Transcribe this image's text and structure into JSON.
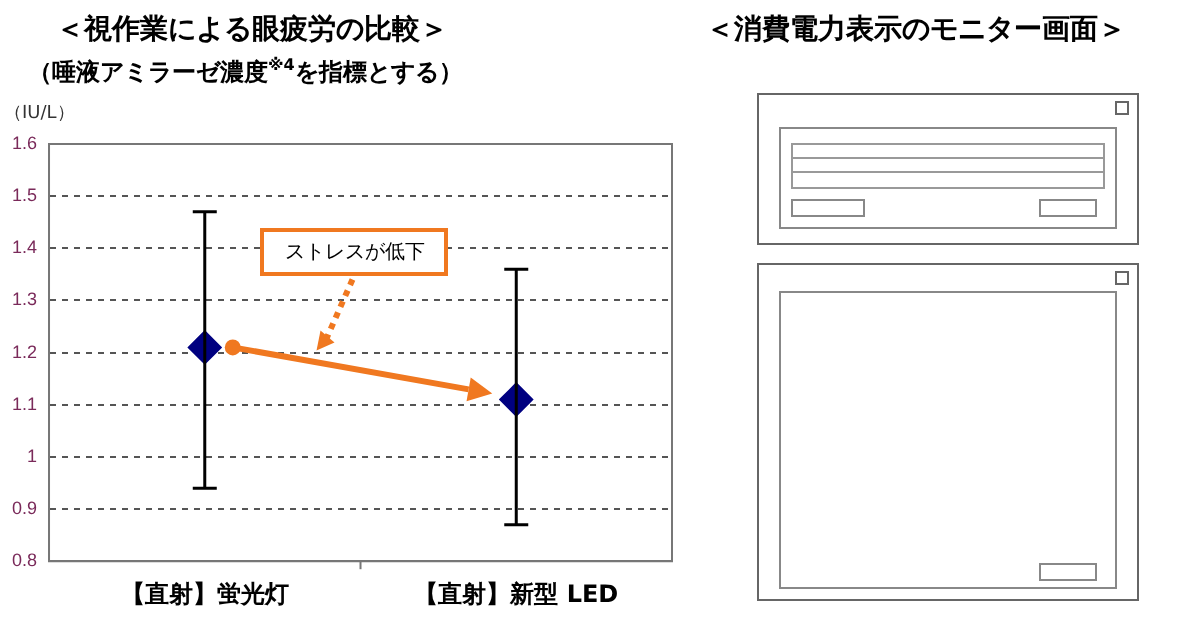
{
  "chart_data": [
    {
      "type": "scatter",
      "title": "＜視作業による眼疲労の比較＞",
      "subtitle": "（唾液アミラーゼ濃度$^{※4}$を指標とする）",
      "ylabel": "（IU/L）",
      "categories": [
        "【直射】蛍光灯",
        "【直射】新型 LED"
      ],
      "series": [
        {
          "color": "#000080",
          "values": [
            1.21,
            1.11
          ],
          "errors": [
            [
              0.94,
              1.47
            ],
            [
              0.87,
              1.36
            ]
          ]
        }
      ],
      "ylim": [
        0.8,
        1.6
      ],
      "yticks": [
        0.8,
        0.9,
        {
          "value": 1.0,
          "label": "1"
        },
        1.1,
        1.2,
        1.3,
        1.4,
        1.5,
        1.6
      ],
      "grid": "y",
      "marker": "diamond",
      "legend": false,
      "annotations": [
        "ストレスが低下"
      ]
    },
    {
      "type": "other",
      "title": "＜消費電力表示のモニター画面＞"
    }
  ]
}
